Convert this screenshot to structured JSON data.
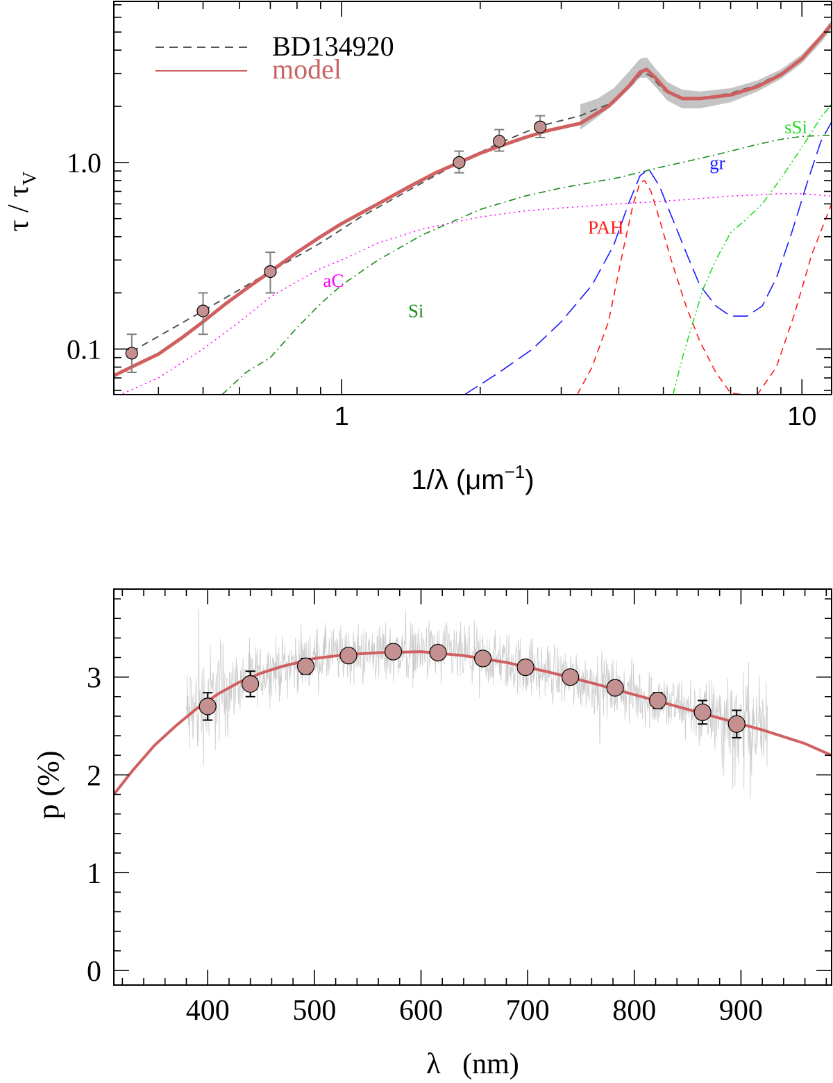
{
  "chart_data": [
    {
      "type": "line",
      "xscale": "log",
      "yscale": "log",
      "xlim": [
        0.32,
        11.6
      ],
      "ylim": [
        0.057,
        7.3
      ],
      "xlabel": "1/λ (μm⁻¹)",
      "ylabel": "τ / τ_V",
      "xlabel_parts": {
        "main": "1/λ (μm",
        "sup": "−1",
        "close": ")"
      },
      "ylabel_parts": {
        "tau": "τ",
        "slash": " / ",
        "tauv": "τ",
        "sub": "V"
      },
      "x_ticks": [
        1,
        10
      ],
      "x_tick_labels": [
        "1",
        "10"
      ],
      "y_ticks": [
        0.1,
        1.0
      ],
      "y_tick_labels": [
        "0.1",
        "1.0"
      ],
      "legend": {
        "position": "top-left",
        "entries": [
          {
            "label": "BD134920",
            "color": "#555555",
            "style": "dashed"
          },
          {
            "label": "model",
            "color": "#d06060",
            "style": "solid"
          }
        ]
      },
      "series": [
        {
          "name": "BD134920",
          "color": "#555555",
          "style": "dashed",
          "x": [
            0.35,
            0.5,
            0.7,
            0.9,
            1.1,
            1.4,
            1.8,
            2.2,
            2.7,
            3.3,
            3.8,
            4.2,
            4.5,
            4.7,
            5.0,
            5.5,
            6.0,
            7.0,
            8.0,
            9.0,
            10.0,
            11.0,
            11.6
          ],
          "y": [
            0.097,
            0.16,
            0.26,
            0.37,
            0.51,
            0.71,
            1.0,
            1.27,
            1.57,
            1.78,
            2.05,
            2.5,
            3.05,
            2.9,
            2.45,
            2.2,
            2.2,
            2.35,
            2.6,
            3.0,
            3.6,
            4.6,
            5.5
          ]
        },
        {
          "name": "model",
          "color": "#d06060",
          "style": "solid",
          "x": [
            0.32,
            0.36,
            0.4,
            0.45,
            0.5,
            0.56,
            0.62,
            0.7,
            0.8,
            0.9,
            1.0,
            1.2,
            1.4,
            1.6,
            1.8,
            2.0,
            2.2,
            2.5,
            2.8,
            3.3,
            3.8,
            4.2,
            4.45,
            4.6,
            4.8,
            5.1,
            5.5,
            6.0,
            7.0,
            8.0,
            9.0,
            10.0,
            11.0,
            11.6
          ],
          "y": [
            0.072,
            0.083,
            0.094,
            0.115,
            0.14,
            0.175,
            0.21,
            0.26,
            0.33,
            0.4,
            0.47,
            0.6,
            0.74,
            0.88,
            1.0,
            1.12,
            1.22,
            1.36,
            1.48,
            1.62,
            2.0,
            2.55,
            3.05,
            3.15,
            2.85,
            2.4,
            2.2,
            2.2,
            2.3,
            2.55,
            2.95,
            3.6,
            4.7,
            5.5
          ]
        },
        {
          "name": "aC",
          "color": "#ff00ff",
          "style": "dotted",
          "x": [
            0.32,
            0.4,
            0.5,
            0.6,
            0.7,
            0.8,
            0.9,
            1.0,
            1.2,
            1.5,
            2.0,
            2.5,
            3.0,
            4.0,
            5.0,
            6.0,
            7.0,
            8.0,
            9.0,
            10.0,
            11.6
          ],
          "y": [
            0.055,
            0.07,
            0.1,
            0.14,
            0.19,
            0.23,
            0.27,
            0.3,
            0.37,
            0.44,
            0.51,
            0.55,
            0.57,
            0.6,
            0.62,
            0.64,
            0.66,
            0.67,
            0.68,
            0.68,
            0.66
          ]
        },
        {
          "name": "Si",
          "color": "#1a8a1a",
          "style": "dashdot",
          "x": [
            0.55,
            0.62,
            0.7,
            0.8,
            0.9,
            1.0,
            1.2,
            1.5,
            2.0,
            2.5,
            3.0,
            4.0,
            5.0,
            6.0,
            7.0,
            8.0,
            9.0,
            10.0,
            11.6
          ],
          "y": [
            0.057,
            0.075,
            0.09,
            0.13,
            0.175,
            0.22,
            0.3,
            0.41,
            0.56,
            0.66,
            0.73,
            0.83,
            0.95,
            1.05,
            1.15,
            1.25,
            1.33,
            1.38,
            1.4
          ]
        },
        {
          "name": "gr",
          "color": "#1a1aff",
          "style": "longdash",
          "x": [
            1.85,
            2.2,
            2.6,
            3.0,
            3.5,
            3.9,
            4.2,
            4.45,
            4.65,
            4.9,
            5.2,
            5.6,
            6.0,
            6.5,
            7.0,
            7.6,
            8.2,
            8.8,
            9.5,
            10.3,
            11.0,
            11.6
          ],
          "y": [
            0.057,
            0.075,
            0.1,
            0.14,
            0.22,
            0.36,
            0.6,
            0.85,
            0.92,
            0.75,
            0.52,
            0.33,
            0.22,
            0.17,
            0.15,
            0.15,
            0.17,
            0.24,
            0.42,
            0.8,
            1.3,
            1.65
          ]
        },
        {
          "name": "PAH",
          "color": "#ff1a1a",
          "style": "dashed",
          "x": [
            3.25,
            3.5,
            3.8,
            4.1,
            4.3,
            4.45,
            4.55,
            4.7,
            4.9,
            5.2,
            5.6,
            6.0,
            6.5,
            7.0,
            7.5,
            8.0,
            8.8,
            9.6,
            10.5,
            11.6
          ],
          "y": [
            0.057,
            0.08,
            0.14,
            0.35,
            0.6,
            0.78,
            0.8,
            0.7,
            0.5,
            0.3,
            0.17,
            0.11,
            0.075,
            0.058,
            0.057,
            0.057,
            0.08,
            0.15,
            0.32,
            0.6
          ]
        },
        {
          "name": "sSi",
          "color": "#22dd22",
          "style": "dashdotdot",
          "x": [
            5.25,
            5.5,
            5.8,
            6.1,
            6.5,
            7.0,
            7.6,
            8.2,
            8.8,
            9.5,
            10.2,
            11.0,
            11.6
          ],
          "y": [
            0.057,
            0.09,
            0.14,
            0.21,
            0.3,
            0.42,
            0.5,
            0.6,
            0.76,
            1.0,
            1.3,
            1.75,
            2.05
          ]
        }
      ],
      "observed_points": {
        "x": [
          0.35,
          0.5,
          0.7,
          1.8,
          2.2,
          2.7
        ],
        "y": [
          0.095,
          0.16,
          0.26,
          1.0,
          1.3,
          1.55
        ],
        "err_low": [
          0.075,
          0.12,
          0.2,
          0.88,
          1.15,
          1.36
        ],
        "err_high": [
          0.12,
          0.2,
          0.33,
          1.15,
          1.5,
          1.78
        ]
      },
      "uv_band": {
        "x": [
          3.3,
          3.6,
          3.9,
          4.2,
          4.45,
          4.6,
          4.8,
          5.1,
          5.5,
          6.0,
          7.0,
          8.0,
          9.0,
          10.0,
          11.0,
          11.6
        ],
        "y_low": [
          1.5,
          1.75,
          2.05,
          2.45,
          2.85,
          2.85,
          2.55,
          2.15,
          1.95,
          1.95,
          2.1,
          2.4,
          2.8,
          3.4,
          4.4,
          5.2
        ],
        "y_high": [
          2.05,
          2.2,
          2.5,
          3.05,
          3.6,
          3.65,
          3.2,
          2.7,
          2.45,
          2.4,
          2.5,
          2.75,
          3.15,
          3.8,
          4.85,
          5.8
        ]
      },
      "annotations": [
        {
          "text": "aC",
          "x": 0.96,
          "y": 0.215,
          "color": "#ff00ff"
        },
        {
          "text": "Si",
          "x": 1.45,
          "y": 0.148,
          "color": "#1a8a1a"
        },
        {
          "text": "gr",
          "x": 6.55,
          "y": 0.92,
          "color": "#1a1aff"
        },
        {
          "text": "PAH",
          "x": 3.75,
          "y": 0.415,
          "color": "#ff1a1a"
        },
        {
          "text": "sSi",
          "x": 9.7,
          "y": 1.43,
          "color": "#22dd22"
        }
      ]
    },
    {
      "type": "line",
      "xlim": [
        312,
        985
      ],
      "ylim": [
        -0.15,
        3.9
      ],
      "xlabel": "λ   (nm)",
      "ylabel": "p (%)",
      "x_ticks": [
        400,
        500,
        600,
        700,
        800,
        900
      ],
      "x_tick_labels": [
        "400",
        "500",
        "600",
        "700",
        "800",
        "900"
      ],
      "y_ticks": [
        0,
        1,
        2,
        3
      ],
      "y_tick_labels": [
        "0",
        "1",
        "2",
        "3"
      ],
      "noise_range": [
        380,
        925
      ],
      "noise_color": "#cccccc",
      "model_line": {
        "color": "#d06060",
        "x": [
          312,
          330,
          350,
          370,
          390,
          410,
          430,
          450,
          470,
          500,
          530,
          560,
          600,
          640,
          680,
          720,
          760,
          800,
          840,
          880,
          920,
          960,
          985
        ],
        "y": [
          1.8,
          2.05,
          2.3,
          2.5,
          2.68,
          2.83,
          2.95,
          3.04,
          3.11,
          3.19,
          3.23,
          3.25,
          3.26,
          3.22,
          3.15,
          3.05,
          2.94,
          2.82,
          2.7,
          2.58,
          2.46,
          2.32,
          2.2
        ]
      },
      "observed_points": {
        "x": [
          400,
          440,
          492,
          532,
          574,
          616,
          658,
          698,
          740,
          782,
          822,
          864,
          896
        ],
        "y": [
          2.7,
          2.93,
          3.11,
          3.22,
          3.26,
          3.25,
          3.19,
          3.1,
          3.0,
          2.89,
          2.76,
          2.64,
          2.52
        ],
        "err": [
          0.14,
          0.13,
          0.08,
          0.07,
          0.06,
          0.06,
          0.06,
          0.06,
          0.06,
          0.07,
          0.08,
          0.12,
          0.14
        ]
      }
    }
  ],
  "colors": {
    "point_fill": "#c49090",
    "error_top": "#808080",
    "error_bottom": "#000000",
    "band": "#c4c4c4"
  }
}
